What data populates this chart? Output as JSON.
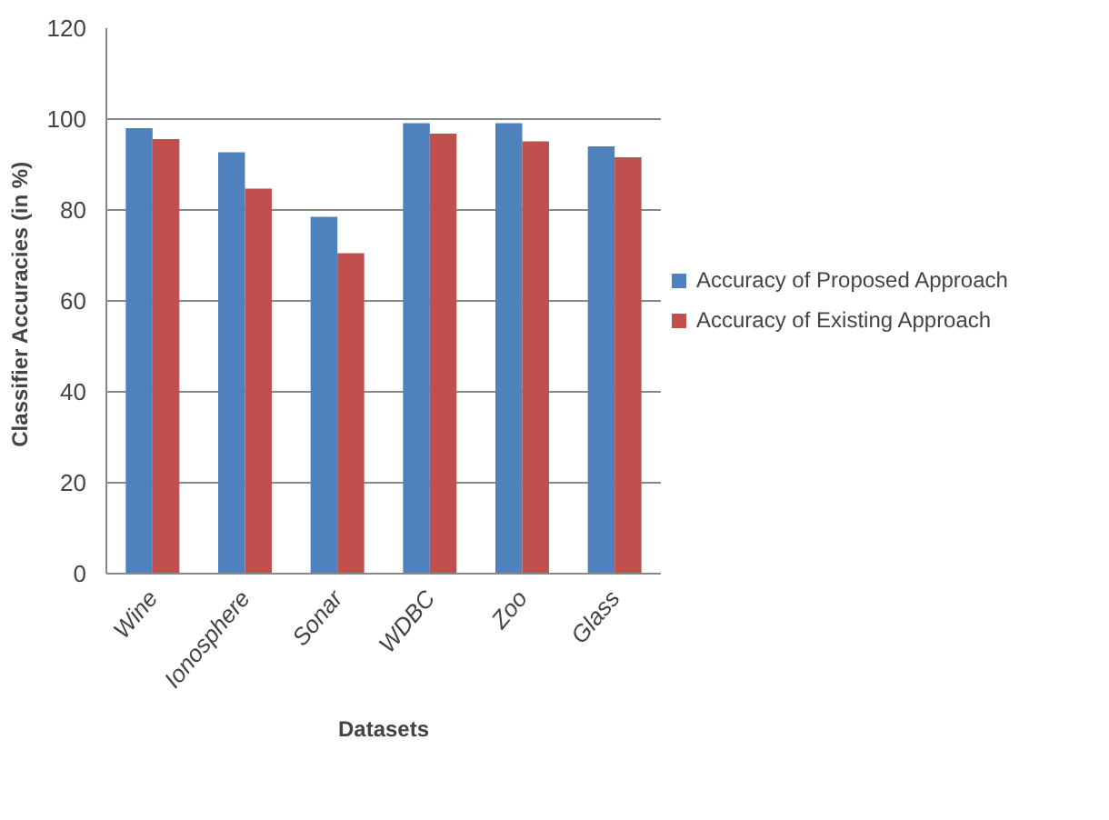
{
  "chart_data": {
    "type": "bar",
    "xlabel": "Datasets",
    "ylabel": "Classifier Accuracies  (in %)",
    "categories": [
      "Wine",
      "Ionosphere",
      "Sonar",
      "WDBC",
      "Zoo",
      "Glass"
    ],
    "series": [
      {
        "name": "Accuracy of Proposed Approach",
        "color": "#4f81bd",
        "values": [
          98.0,
          92.7,
          78.5,
          99.1,
          99.1,
          94.0
        ]
      },
      {
        "name": "Accuracy of Existing Approach",
        "color": "#c0504d",
        "values": [
          95.6,
          84.7,
          70.5,
          96.8,
          95.1,
          91.6
        ]
      }
    ],
    "ylim": [
      0,
      120
    ],
    "yticks": [
      0,
      20,
      40,
      60,
      80,
      100,
      120
    ],
    "grid": "y",
    "legend": "right"
  }
}
